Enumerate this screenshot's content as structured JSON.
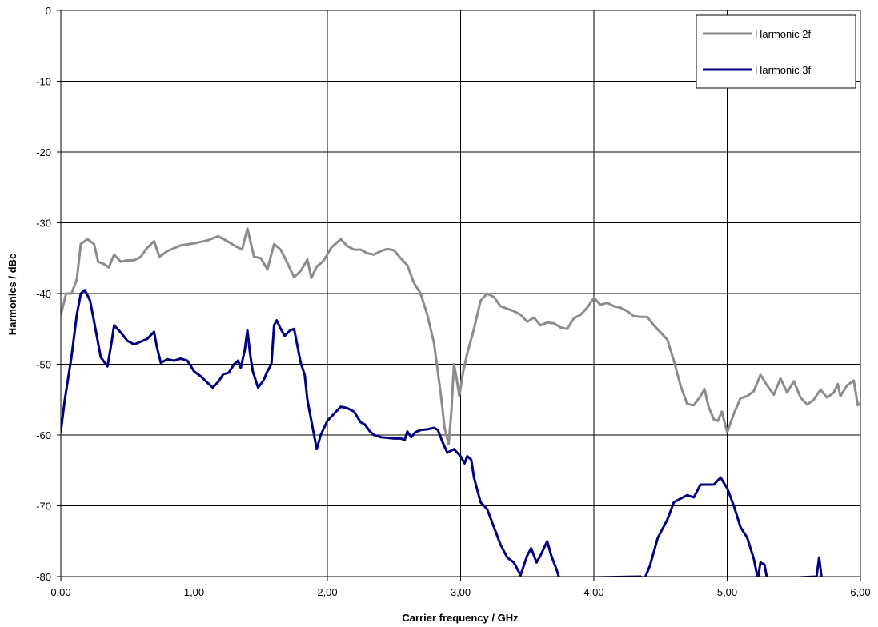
{
  "chart_data": {
    "type": "line",
    "title": "",
    "xlabel": "Carrier frequency / GHz",
    "ylabel": "Harmonics / dBc",
    "xlim": [
      0,
      6
    ],
    "ylim": [
      -80,
      0
    ],
    "x_ticks": [
      "0,00",
      "1,00",
      "2,00",
      "3,00",
      "4,00",
      "5,00",
      "6,00"
    ],
    "y_ticks": [
      "0",
      "-10",
      "-20",
      "-30",
      "-40",
      "-50",
      "-60",
      "-70",
      "-80"
    ],
    "grid": true,
    "legend_position": "top-right",
    "series": [
      {
        "name": "Harmonic 2f",
        "color": "#8c8c8c",
        "points": [
          [
            0.0,
            -43
          ],
          [
            0.04,
            -40
          ],
          [
            0.08,
            -40
          ],
          [
            0.12,
            -38
          ],
          [
            0.15,
            -33
          ],
          [
            0.2,
            -32.3
          ],
          [
            0.25,
            -33
          ],
          [
            0.28,
            -35.5
          ],
          [
            0.32,
            -35.8
          ],
          [
            0.36,
            -36.3
          ],
          [
            0.4,
            -34.5
          ],
          [
            0.45,
            -35.5
          ],
          [
            0.5,
            -35.3
          ],
          [
            0.55,
            -35.3
          ],
          [
            0.6,
            -34.8
          ],
          [
            0.65,
            -33.5
          ],
          [
            0.7,
            -32.6
          ],
          [
            0.74,
            -34.8
          ],
          [
            0.8,
            -34
          ],
          [
            0.9,
            -33.2
          ],
          [
            1.0,
            -32.9
          ],
          [
            1.1,
            -32.5
          ],
          [
            1.18,
            -31.9
          ],
          [
            1.25,
            -32.6
          ],
          [
            1.3,
            -33.2
          ],
          [
            1.36,
            -33.8
          ],
          [
            1.4,
            -30.8
          ],
          [
            1.45,
            -34.8
          ],
          [
            1.5,
            -35
          ],
          [
            1.55,
            -36.6
          ],
          [
            1.6,
            -33
          ],
          [
            1.65,
            -33.8
          ],
          [
            1.7,
            -35.7
          ],
          [
            1.75,
            -37.7
          ],
          [
            1.8,
            -36.8
          ],
          [
            1.85,
            -35.2
          ],
          [
            1.88,
            -37.8
          ],
          [
            1.92,
            -36.2
          ],
          [
            1.97,
            -35.4
          ],
          [
            2.03,
            -33.5
          ],
          [
            2.1,
            -32.3
          ],
          [
            2.15,
            -33.3
          ],
          [
            2.2,
            -33.8
          ],
          [
            2.25,
            -33.8
          ],
          [
            2.3,
            -34.3
          ],
          [
            2.35,
            -34.5
          ],
          [
            2.4,
            -34
          ],
          [
            2.45,
            -33.7
          ],
          [
            2.5,
            -33.9
          ],
          [
            2.55,
            -35
          ],
          [
            2.6,
            -36
          ],
          [
            2.65,
            -38.5
          ],
          [
            2.7,
            -40
          ],
          [
            2.75,
            -43
          ],
          [
            2.8,
            -47
          ],
          [
            2.85,
            -54
          ],
          [
            2.88,
            -59
          ],
          [
            2.91,
            -61.3
          ],
          [
            2.93,
            -57
          ],
          [
            2.95,
            -50
          ],
          [
            2.97,
            -52
          ],
          [
            2.99,
            -54.5
          ],
          [
            3.02,
            -51
          ],
          [
            3.05,
            -48.5
          ],
          [
            3.1,
            -45
          ],
          [
            3.15,
            -41
          ],
          [
            3.2,
            -40
          ],
          [
            3.25,
            -40.5
          ],
          [
            3.3,
            -41.8
          ],
          [
            3.4,
            -42.5
          ],
          [
            3.45,
            -43
          ],
          [
            3.5,
            -44
          ],
          [
            3.55,
            -43.4
          ],
          [
            3.6,
            -44.5
          ],
          [
            3.65,
            -44.1
          ],
          [
            3.7,
            -44.2
          ],
          [
            3.75,
            -44.8
          ],
          [
            3.8,
            -45
          ],
          [
            3.85,
            -43.5
          ],
          [
            3.9,
            -43
          ],
          [
            3.95,
            -42
          ],
          [
            4.0,
            -40.6
          ],
          [
            4.05,
            -41.6
          ],
          [
            4.1,
            -41.3
          ],
          [
            4.15,
            -41.8
          ],
          [
            4.2,
            -42
          ],
          [
            4.25,
            -42.5
          ],
          [
            4.3,
            -43.2
          ],
          [
            4.35,
            -43.3
          ],
          [
            4.4,
            -43.3
          ],
          [
            4.45,
            -44.5
          ],
          [
            4.5,
            -45.5
          ],
          [
            4.55,
            -46.5
          ],
          [
            4.6,
            -49.5
          ],
          [
            4.65,
            -53
          ],
          [
            4.7,
            -55.6
          ],
          [
            4.75,
            -55.8
          ],
          [
            4.8,
            -54.5
          ],
          [
            4.83,
            -53.5
          ],
          [
            4.86,
            -56
          ],
          [
            4.9,
            -57.8
          ],
          [
            4.93,
            -58
          ],
          [
            4.96,
            -56.7
          ],
          [
            5.0,
            -59.6
          ],
          [
            5.05,
            -57
          ],
          [
            5.1,
            -54.8
          ],
          [
            5.15,
            -54.5
          ],
          [
            5.2,
            -53.8
          ],
          [
            5.25,
            -51.5
          ],
          [
            5.3,
            -53
          ],
          [
            5.35,
            -54.3
          ],
          [
            5.4,
            -52
          ],
          [
            5.45,
            -54
          ],
          [
            5.5,
            -52.4
          ],
          [
            5.55,
            -54.7
          ],
          [
            5.6,
            -55.7
          ],
          [
            5.65,
            -55
          ],
          [
            5.7,
            -53.6
          ],
          [
            5.75,
            -54.7
          ],
          [
            5.8,
            -54
          ],
          [
            5.83,
            -52.8
          ],
          [
            5.85,
            -54.5
          ],
          [
            5.9,
            -53
          ],
          [
            5.95,
            -52.3
          ],
          [
            5.98,
            -55.8
          ],
          [
            6.0,
            -55.5
          ]
        ]
      },
      {
        "name": "Harmonic 3f",
        "color": "#000080",
        "points": [
          [
            0.0,
            -59.5
          ],
          [
            0.03,
            -55
          ],
          [
            0.08,
            -49
          ],
          [
            0.12,
            -43
          ],
          [
            0.15,
            -40
          ],
          [
            0.18,
            -39.5
          ],
          [
            0.22,
            -41
          ],
          [
            0.26,
            -45
          ],
          [
            0.3,
            -49
          ],
          [
            0.35,
            -50.3
          ],
          [
            0.38,
            -47
          ],
          [
            0.4,
            -44.5
          ],
          [
            0.45,
            -45.5
          ],
          [
            0.5,
            -46.7
          ],
          [
            0.55,
            -47.2
          ],
          [
            0.6,
            -46.8
          ],
          [
            0.65,
            -46.4
          ],
          [
            0.7,
            -45.4
          ],
          [
            0.72,
            -47.5
          ],
          [
            0.75,
            -49.8
          ],
          [
            0.8,
            -49.3
          ],
          [
            0.85,
            -49.5
          ],
          [
            0.9,
            -49.2
          ],
          [
            0.95,
            -49.5
          ],
          [
            1.0,
            -51
          ],
          [
            1.05,
            -51.7
          ],
          [
            1.1,
            -52.6
          ],
          [
            1.14,
            -53.3
          ],
          [
            1.18,
            -52.5
          ],
          [
            1.22,
            -51.4
          ],
          [
            1.26,
            -51.2
          ],
          [
            1.3,
            -50
          ],
          [
            1.33,
            -49.5
          ],
          [
            1.35,
            -50.5
          ],
          [
            1.38,
            -48
          ],
          [
            1.4,
            -45.2
          ],
          [
            1.42,
            -48.5
          ],
          [
            1.44,
            -51
          ],
          [
            1.48,
            -53.3
          ],
          [
            1.52,
            -52.3
          ],
          [
            1.55,
            -51
          ],
          [
            1.58,
            -50
          ],
          [
            1.6,
            -44.5
          ],
          [
            1.62,
            -43.8
          ],
          [
            1.65,
            -45
          ],
          [
            1.68,
            -46
          ],
          [
            1.72,
            -45.2
          ],
          [
            1.75,
            -45
          ],
          [
            1.8,
            -49.8
          ],
          [
            1.83,
            -51.5
          ],
          [
            1.85,
            -55
          ],
          [
            1.88,
            -58
          ],
          [
            1.92,
            -62
          ],
          [
            1.95,
            -60
          ],
          [
            2.0,
            -58
          ],
          [
            2.05,
            -57
          ],
          [
            2.1,
            -56
          ],
          [
            2.15,
            -56.2
          ],
          [
            2.2,
            -56.7
          ],
          [
            2.25,
            -58.2
          ],
          [
            2.28,
            -58.5
          ],
          [
            2.32,
            -59.5
          ],
          [
            2.35,
            -60
          ],
          [
            2.4,
            -60.3
          ],
          [
            2.45,
            -60.4
          ],
          [
            2.5,
            -60.5
          ],
          [
            2.55,
            -60.5
          ],
          [
            2.58,
            -60.7
          ],
          [
            2.6,
            -59.5
          ],
          [
            2.63,
            -60.3
          ],
          [
            2.66,
            -59.6
          ],
          [
            2.7,
            -59.3
          ],
          [
            2.75,
            -59.2
          ],
          [
            2.8,
            -59
          ],
          [
            2.83,
            -59.3
          ],
          [
            2.86,
            -60.8
          ],
          [
            2.9,
            -62.5
          ],
          [
            2.95,
            -62
          ],
          [
            3.0,
            -63
          ],
          [
            3.03,
            -64
          ],
          [
            3.05,
            -63
          ],
          [
            3.08,
            -63.5
          ],
          [
            3.1,
            -66
          ],
          [
            3.15,
            -69.5
          ],
          [
            3.2,
            -70.5
          ],
          [
            3.25,
            -73
          ],
          [
            3.3,
            -75.5
          ],
          [
            3.35,
            -77.3
          ],
          [
            3.4,
            -78
          ],
          [
            3.45,
            -79.8
          ],
          [
            3.5,
            -77
          ],
          [
            3.53,
            -76
          ],
          [
            3.57,
            -78
          ],
          [
            3.6,
            -77
          ],
          [
            3.65,
            -75
          ],
          [
            3.68,
            -77
          ],
          [
            3.72,
            -79
          ],
          [
            3.74,
            -80.2
          ],
          [
            4.35,
            -80
          ],
          [
            4.38,
            -80.3
          ],
          [
            4.42,
            -78.5
          ],
          [
            4.48,
            -74.5
          ],
          [
            4.55,
            -72
          ],
          [
            4.6,
            -69.5
          ],
          [
            4.65,
            -69
          ],
          [
            4.7,
            -68.5
          ],
          [
            4.75,
            -68.8
          ],
          [
            4.8,
            -67
          ],
          [
            4.85,
            -67
          ],
          [
            4.9,
            -67
          ],
          [
            4.95,
            -66
          ],
          [
            5.0,
            -67.5
          ],
          [
            5.05,
            -70
          ],
          [
            5.1,
            -73
          ],
          [
            5.15,
            -74.5
          ],
          [
            5.2,
            -77.5
          ],
          [
            5.23,
            -80.3
          ],
          [
            5.25,
            -78
          ],
          [
            5.28,
            -78.3
          ],
          [
            5.3,
            -80.3
          ],
          [
            5.67,
            -80
          ],
          [
            5.69,
            -77.3
          ],
          [
            5.71,
            -80.3
          ]
        ]
      }
    ]
  }
}
